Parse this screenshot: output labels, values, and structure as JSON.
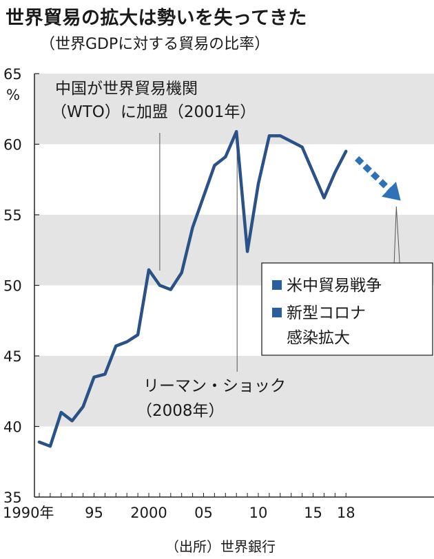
{
  "title": "世界貿易の拡大は勢いを失ってきた",
  "subtitle": "（世界GDPに対する貿易の比率）",
  "source": "（出所）世界銀行",
  "colors": {
    "line": "#2a5286",
    "arrow": "#2f71b8",
    "band": "#e4e4e4",
    "axis": "#222222",
    "legend_marker": "#2a5f9e"
  },
  "annotations": {
    "wto_line1": "中国が世界貿易機関",
    "wto_line2": "（WTO）に加盟（2001年）",
    "lehman_line1": "リーマン・ショック",
    "lehman_line2": "（2008年）"
  },
  "legend": {
    "items": [
      "米中貿易戦争",
      "新型コロナ",
      "感染拡大"
    ]
  },
  "chart_data": {
    "type": "line",
    "title": "世界貿易の拡大は勢いを失ってきた",
    "subtitle": "（世界GDPに対する貿易の比率）",
    "ylabel": "%",
    "ylim": [
      35,
      65
    ],
    "yticks": [
      35,
      40,
      45,
      50,
      55,
      60,
      65
    ],
    "xlim": [
      1990,
      2021
    ],
    "xticks": [
      {
        "value": 1990,
        "label": "1990年"
      },
      {
        "value": 1995,
        "label": "95"
      },
      {
        "value": 2000,
        "label": "2000"
      },
      {
        "value": 2005,
        "label": "05"
      },
      {
        "value": 2010,
        "label": "10"
      },
      {
        "value": 2015,
        "label": "15"
      },
      {
        "value": 2018,
        "label": "18"
      }
    ],
    "grid_bands": [
      [
        40,
        45
      ],
      [
        50,
        55
      ],
      [
        60,
        65
      ]
    ],
    "series": [
      {
        "x": [
          1990,
          1991,
          1992,
          1993,
          1994,
          1995,
          1996,
          1997,
          1998,
          1999,
          2000,
          2001,
          2002,
          2003,
          2004,
          2005,
          2006,
          2007,
          2008,
          2009,
          2010,
          2011,
          2012,
          2013,
          2014,
          2015,
          2016,
          2017,
          2018
        ],
        "values": [
          38.9,
          38.6,
          41.0,
          40.4,
          41.4,
          43.5,
          43.7,
          45.7,
          46.0,
          46.5,
          51.1,
          50.0,
          49.7,
          50.9,
          54.1,
          56.3,
          58.5,
          59.1,
          60.9,
          52.4,
          57.2,
          60.6,
          60.6,
          60.2,
          59.8,
          58.0,
          56.2,
          58.0,
          59.5
        ]
      }
    ],
    "projection_arrow": {
      "from": [
        2019,
        59.0
      ],
      "to": [
        2023,
        56.0
      ]
    },
    "events": [
      {
        "x": 2001,
        "label": "中国が世界貿易機関（WTO）に加盟（2001年）"
      },
      {
        "x": 2008,
        "label": "リーマン・ショック（2008年）"
      }
    ],
    "legend_position": "right",
    "legend_entries": [
      "米中貿易戦争",
      "新型コロナ感染拡大"
    ]
  }
}
